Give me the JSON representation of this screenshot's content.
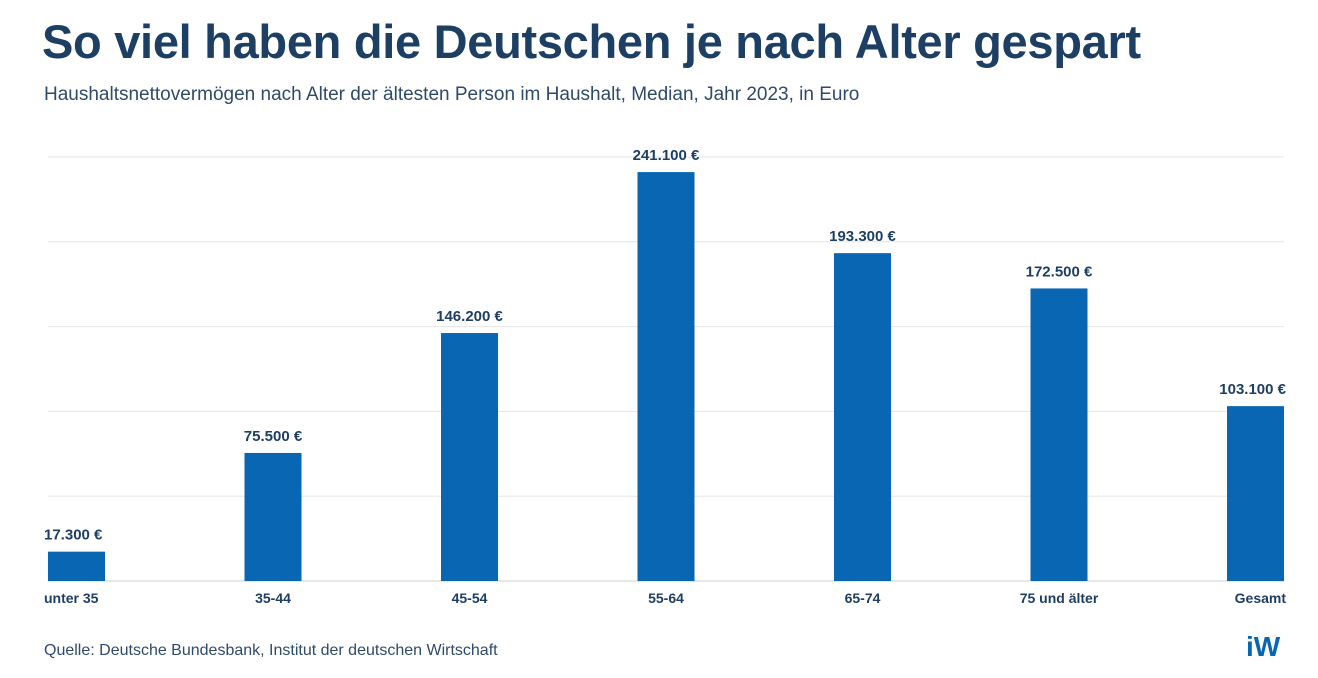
{
  "header": {
    "title": "So viel haben die Deutschen je nach Alter gespart",
    "subtitle": "Haushaltsnettovermögen nach Alter der ältesten Person im Haushalt, Median, Jahr 2023, in Euro"
  },
  "footer": {
    "source": "Quelle: Deutsche Bundesbank, Institut der deutschen Wirtschaft",
    "logo_text": "iW"
  },
  "colors": {
    "bar": "#0866b3",
    "title": "#1e3f64",
    "grid": "#e6e6e6",
    "label": "#1e3f64"
  },
  "chart_data": {
    "type": "bar",
    "title": "So viel haben die Deutschen je nach Alter gespart",
    "xlabel": "",
    "ylabel": "",
    "ylim": [
      0,
      250000
    ],
    "grid": true,
    "categories": [
      "unter 35",
      "35-44",
      "45-54",
      "55-64",
      "65-74",
      "75 und älter",
      "Gesamt"
    ],
    "values": [
      17300,
      75500,
      146200,
      241100,
      193300,
      172500,
      103100
    ],
    "value_labels": [
      "17.300 €",
      "75.500 €",
      "146.200 €",
      "241.100 €",
      "193.300 €",
      "172.500 €",
      "103.100 €"
    ]
  }
}
